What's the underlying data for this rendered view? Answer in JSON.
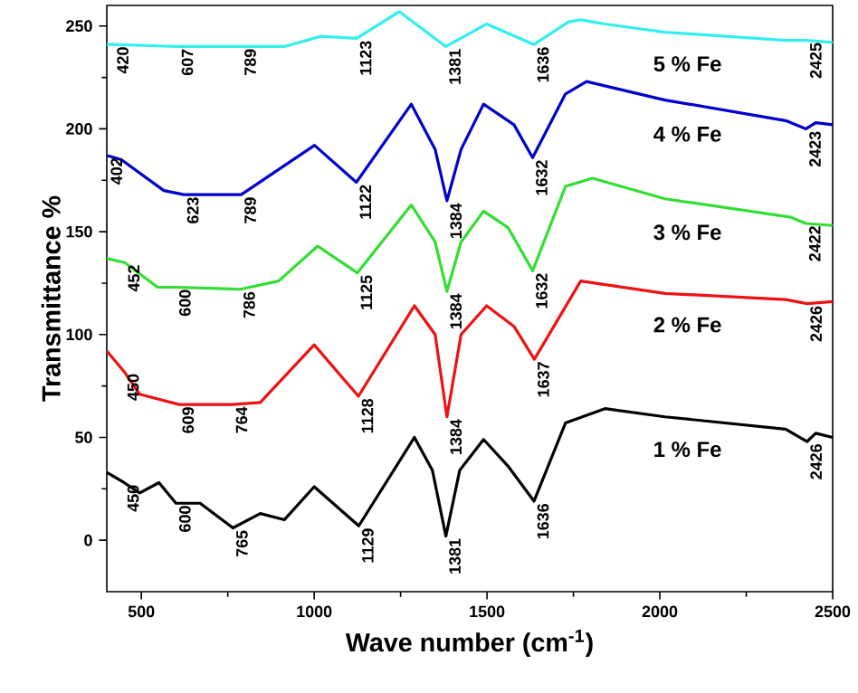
{
  "chart_data": {
    "type": "line",
    "xlabel": "Wave number (cm$^{-1}$)",
    "ylabel": "Transmittance %",
    "xlim": [
      400,
      2500
    ],
    "ylim": [
      -25,
      260
    ],
    "xticks": [
      500,
      1000,
      1500,
      2000,
      2500
    ],
    "yticks": [
      0,
      50,
      100,
      150,
      200,
      250
    ],
    "grid": false,
    "legend": false,
    "marker": "none",
    "line_style": "solid",
    "series": [
      {
        "name": "1 % Fe",
        "color": "#000000",
        "x": [
          400,
          450,
          495,
          551,
          600,
          670,
          765,
          844,
          914,
          1000,
          1129,
          1290,
          1342,
          1381,
          1421,
          1490,
          1561,
          1636,
          1727,
          1841,
          2015,
          2364,
          2426,
          2451,
          2500
        ],
        "values": [
          33,
          28,
          23,
          28,
          18,
          18,
          6,
          13,
          10,
          26,
          7,
          50,
          34,
          2,
          34,
          49,
          36,
          19,
          57,
          64,
          60,
          54,
          48,
          52,
          50
        ]
      },
      {
        "name": "2 % Fe",
        "color": "#ee1111",
        "x": [
          400,
          450,
          495,
          609,
          764,
          844,
          1000,
          1128,
          1290,
          1350,
          1384,
          1425,
          1499,
          1578,
          1637,
          1771,
          2015,
          2364,
          2426,
          2500
        ],
        "values": [
          92,
          82,
          71,
          66,
          66,
          67,
          95,
          70,
          114,
          100,
          60,
          100,
          114,
          104,
          88,
          126,
          120,
          117,
          115,
          116
        ]
      },
      {
        "name": "3 % Fe",
        "color": "#33dd33",
        "x": [
          400,
          452,
          547,
          600,
          786,
          897,
          1010,
          1125,
          1281,
          1350,
          1384,
          1425,
          1490,
          1561,
          1632,
          1727,
          1805,
          2015,
          2380,
          2422,
          2500
        ],
        "values": [
          137,
          135,
          123,
          123,
          122,
          126,
          143,
          130,
          163,
          145,
          121,
          145,
          160,
          152,
          131,
          172,
          176,
          166,
          157,
          154,
          153
        ]
      },
      {
        "name": "4 % Fe",
        "color": "#0000cc",
        "x": [
          402,
          442,
          565,
          623,
          789,
          1001,
          1122,
          1281,
          1350,
          1384,
          1425,
          1490,
          1578,
          1632,
          1727,
          1788,
          2015,
          2364,
          2423,
          2451,
          2500
        ],
        "values": [
          187,
          185,
          170,
          168,
          168,
          192,
          174,
          212,
          190,
          165,
          190,
          212,
          202,
          186,
          217,
          223,
          214,
          204,
          200,
          203,
          202
        ]
      },
      {
        "name": "5 % Fe",
        "color": "#33eeee",
        "x": [
          400,
          420,
          607,
          789,
          914,
          1019,
          1123,
          1246,
          1381,
          1499,
          1636,
          1736,
          1771,
          1841,
          2015,
          2364,
          2425,
          2500
        ],
        "values": [
          241,
          241,
          240,
          240,
          240,
          245,
          244,
          257,
          240,
          251,
          241,
          252,
          253,
          251,
          247,
          243,
          243,
          242
        ]
      }
    ],
    "annotations": [
      {
        "text": "420",
        "x": 420,
        "y": 241
      },
      {
        "text": "607",
        "x": 607,
        "y": 240
      },
      {
        "text": "789",
        "x": 789,
        "y": 240
      },
      {
        "text": "1123",
        "x": 1123,
        "y": 244
      },
      {
        "text": "1381",
        "x": 1381,
        "y": 240
      },
      {
        "text": "1636",
        "x": 1636,
        "y": 241
      },
      {
        "text": "2425",
        "x": 2425,
        "y": 243
      },
      {
        "text": "402",
        "x": 402,
        "y": 187
      },
      {
        "text": "623",
        "x": 623,
        "y": 168
      },
      {
        "text": "789",
        "x": 789,
        "y": 168
      },
      {
        "text": "1122",
        "x": 1122,
        "y": 174
      },
      {
        "text": "1384",
        "x": 1384,
        "y": 165
      },
      {
        "text": "1632",
        "x": 1632,
        "y": 186
      },
      {
        "text": "2423",
        "x": 2423,
        "y": 200
      },
      {
        "text": "452",
        "x": 452,
        "y": 135
      },
      {
        "text": "600",
        "x": 600,
        "y": 123
      },
      {
        "text": "786",
        "x": 786,
        "y": 122
      },
      {
        "text": "1125",
        "x": 1125,
        "y": 130
      },
      {
        "text": "1384",
        "x": 1384,
        "y": 121
      },
      {
        "text": "1632",
        "x": 1632,
        "y": 131
      },
      {
        "text": "2422",
        "x": 2422,
        "y": 154
      },
      {
        "text": "450",
        "x": 450,
        "y": 82
      },
      {
        "text": "609",
        "x": 609,
        "y": 66
      },
      {
        "text": "764",
        "x": 764,
        "y": 66
      },
      {
        "text": "1128",
        "x": 1128,
        "y": 70
      },
      {
        "text": "1384",
        "x": 1384,
        "y": 60
      },
      {
        "text": "1637",
        "x": 1637,
        "y": 88
      },
      {
        "text": "2426",
        "x": 2426,
        "y": 115
      },
      {
        "text": "450",
        "x": 450,
        "y": 28
      },
      {
        "text": "600",
        "x": 600,
        "y": 18
      },
      {
        "text": "765",
        "x": 765,
        "y": 6
      },
      {
        "text": "1129",
        "x": 1129,
        "y": 7
      },
      {
        "text": "1381",
        "x": 1381,
        "y": 2
      },
      {
        "text": "1636",
        "x": 1636,
        "y": 19
      },
      {
        "text": "2426",
        "x": 2426,
        "y": 48
      }
    ]
  }
}
